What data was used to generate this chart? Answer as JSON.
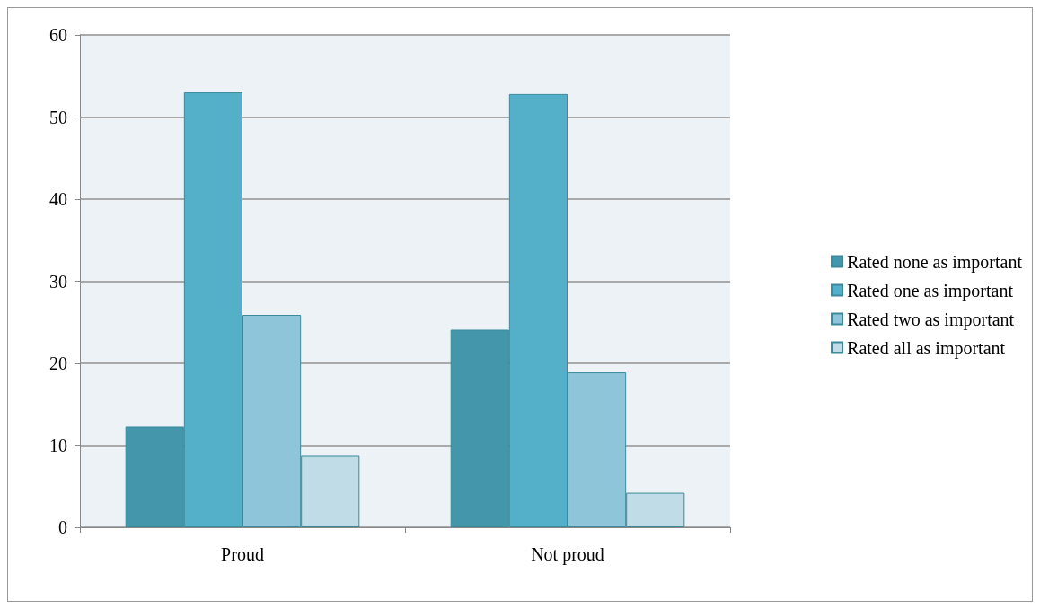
{
  "chart_data": {
    "type": "bar",
    "categories": [
      "Proud",
      "Not proud"
    ],
    "series": [
      {
        "name": "Rated none as important",
        "color": "#4496aa",
        "values": [
          12.3,
          24.1
        ]
      },
      {
        "name": "Rated one as important",
        "color": "#54afc8",
        "values": [
          53.0,
          52.8
        ]
      },
      {
        "name": "Rated two as important",
        "color": "#8fc5d9",
        "values": [
          25.9,
          18.9
        ]
      },
      {
        "name": "Rated all as important",
        "color": "#c0dce6",
        "values": [
          8.8,
          4.2
        ]
      }
    ],
    "ylim": [
      0,
      60
    ],
    "yticks": [
      0,
      10,
      20,
      30,
      40,
      50,
      60
    ],
    "grid": "y",
    "legend": "right"
  }
}
